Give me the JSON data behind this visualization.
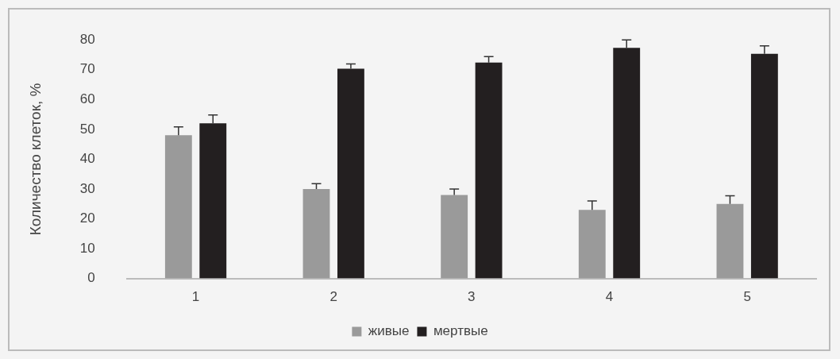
{
  "chart_data": {
    "type": "bar",
    "ylabel": "Количество клеток, %",
    "categories": [
      "1",
      "2",
      "3",
      "4",
      "5"
    ],
    "series": [
      {
        "name": "живые",
        "color": "#9a9a9a",
        "values": [
          48,
          30,
          28,
          23,
          25
        ],
        "errors": [
          [
            48,
            50.8
          ],
          [
            30,
            31.8
          ],
          [
            28,
            30
          ],
          [
            23,
            26
          ],
          [
            25,
            27.7
          ]
        ]
      },
      {
        "name": "мертвые",
        "color": "#231f20",
        "values": [
          52,
          70.3,
          72.4,
          77.3,
          75.3
        ],
        "errors": [
          [
            52,
            54.8
          ],
          [
            70.3,
            71.9
          ],
          [
            72.4,
            74.4
          ],
          [
            77.3,
            80
          ],
          [
            75.3,
            78
          ]
        ]
      }
    ],
    "ylim": [
      0,
      80
    ],
    "yticks": [
      0,
      10,
      20,
      30,
      40,
      50,
      60,
      70,
      80
    ],
    "grid": false,
    "legend": "bottom"
  }
}
